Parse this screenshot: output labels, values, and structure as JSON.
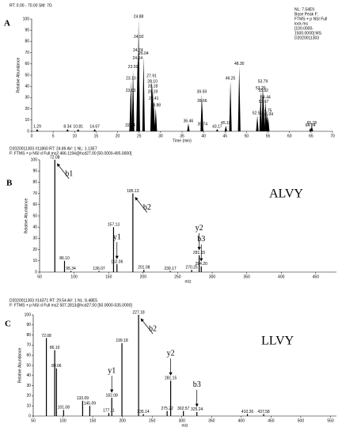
{
  "chart_data": [
    {
      "type": "peaks",
      "panel": "A",
      "header": [
        "RT: 0.00 - 70.00   SM: 7G"
      ],
      "header_colors": [
        "#2020a0"
      ],
      "info": [
        "NL: 7.54E9",
        "Base Peak F:",
        "FTMS + p NSI Full",
        "lock ms",
        "[100.0000-",
        "1500.0000] MS",
        "D2020011303"
      ],
      "ylabel": "Relative Abundance",
      "xlabel": "Time (min)",
      "color": "#000000",
      "x": [
        1.29,
        8.34,
        10.81,
        14.67,
        22.94,
        23.03,
        23.1,
        23.59,
        24.64,
        24.74,
        24.88,
        24.92,
        26.04,
        27.91,
        28.1,
        28.18,
        28.19,
        28.41,
        28.88,
        36.46,
        39.59,
        39.66,
        39.74,
        43.17,
        45.19,
        46.25,
        48.3,
        52.51,
        53.29,
        53.79,
        53.92,
        53.97,
        54.44,
        54.75,
        55.04,
        64.84,
        65.18
      ],
      "peak_labels": [
        "1.29",
        "8.34",
        "10.81",
        "14.67",
        "22.94",
        "23.03",
        "23.10",
        "23.59",
        "24.64",
        "24.74",
        "24.88",
        "24.92",
        "26.04",
        "27.91",
        "28.10",
        "28.18",
        "28.19",
        "28.41",
        "28.88",
        "36.46",
        "39.59",
        "39.66",
        "39.74",
        "43.17",
        "45.19",
        "46.25",
        "48.30",
        "52.51",
        "53.29",
        "53.79",
        "53.92",
        "53.97",
        "54.44",
        "54.75",
        "55.04",
        "64.84",
        "65.18"
      ],
      "values": [
        2,
        2,
        2,
        2,
        3,
        34,
        45,
        55,
        63,
        70,
        100,
        82,
        67,
        47,
        42,
        38,
        33,
        27,
        21,
        7,
        33,
        25,
        4,
        2,
        5,
        45,
        58,
        14,
        36,
        42,
        34,
        24,
        28,
        16,
        13,
        3,
        5
      ],
      "xlim": [
        0,
        70
      ],
      "xticks": [
        0,
        5,
        10,
        15,
        20,
        25,
        30,
        35,
        40,
        45,
        50,
        55,
        60,
        65,
        70
      ],
      "ylim": [
        0,
        100
      ],
      "yticks": [
        0,
        10,
        20,
        30,
        40,
        50,
        60,
        70,
        80,
        90,
        100
      ]
    },
    {
      "type": "bar",
      "panel": "B",
      "header": [
        "D2020011303 #11860  RT: 24.89  AV: 1  NL: 1.13E7",
        "F: FTMS + p NSI d Full ms2 466.1194@hcd27.00 [50.0000-495.0000]"
      ],
      "header_colors": [
        "#2020a0",
        "#d02020"
      ],
      "peptide": "ALVY",
      "ylabel": "Relative Abundance",
      "xlabel": "m/z",
      "color": "#000000",
      "x": [
        72.08,
        86.1,
        95.34,
        136.07,
        157.13,
        162.06,
        185.13,
        201.08,
        239.17,
        270.25,
        281.15,
        284.2
      ],
      "peak_labels": [
        "72.08",
        "86.10",
        "95.34",
        "136.07",
        "157.13",
        "162.06",
        "185.13",
        "201.08",
        "239.17",
        "270.25",
        "281.15",
        "284.20"
      ],
      "values": [
        100,
        10,
        1,
        1,
        40,
        7,
        70,
        2,
        1,
        2,
        15,
        5
      ],
      "annotations": [
        {
          "label": "b1",
          "x": 72.08
        },
        {
          "label": "y1",
          "x": 162.06
        },
        {
          "label": "b2",
          "x": 185.13
        },
        {
          "label": "y2",
          "x": 281.15
        },
        {
          "label": "b3",
          "x": 284.2
        }
      ],
      "xlim": [
        50,
        480
      ],
      "xticks": [
        50,
        100,
        150,
        200,
        250,
        300,
        350,
        400,
        450
      ],
      "ylim": [
        0,
        100
      ],
      "yticks": [
        0,
        10,
        20,
        30,
        40,
        50,
        60,
        70,
        80,
        90,
        100
      ]
    },
    {
      "type": "bar",
      "panel": "C",
      "header": [
        "D2020011303 #14371  RT: 29.54  AV: 1  NL: 8.48E5",
        "F: FTMS + p NSI d Full ms2 507.2813@hcd27.00 [50.0000-535.0000]"
      ],
      "header_colors": [
        "#2020a0",
        "#d02020"
      ],
      "peptide": "LLVY",
      "ylabel": "Relative Abundance",
      "xlabel": "m/z",
      "color": "#000000",
      "x": [
        72.08,
        86.1,
        89.06,
        101.08,
        133.09,
        145.09,
        177.11,
        182.08,
        199.18,
        227.18,
        235.14,
        275.22,
        281.15,
        302.57,
        325.24,
        410.26,
        437.58
      ],
      "peak_labels": [
        "72.08",
        "86.10",
        "89.06",
        "101.08",
        "133.09",
        "145.09",
        "177.11",
        "182.08",
        "199.18",
        "227.18",
        "235.14",
        "275.22",
        "281.15",
        "302.57",
        "325.24",
        "410.26",
        "437.58"
      ],
      "values": [
        77,
        65,
        47,
        6,
        15,
        10,
        3,
        18,
        72,
        100,
        2,
        5,
        35,
        5,
        4,
        2,
        2
      ],
      "annotations": [
        {
          "label": "y1",
          "x": 182.08
        },
        {
          "label": "b2",
          "x": 227.18
        },
        {
          "label": "y2",
          "x": 281.15
        },
        {
          "label": "b3",
          "x": 325.24
        }
      ],
      "xlim": [
        50,
        560
      ],
      "xticks": [
        50,
        100,
        150,
        200,
        250,
        300,
        350,
        400,
        450,
        500,
        550
      ],
      "ylim": [
        0,
        100
      ],
      "yticks": [
        0,
        10,
        20,
        30,
        40,
        50,
        60,
        70,
        80,
        90,
        100
      ]
    }
  ]
}
